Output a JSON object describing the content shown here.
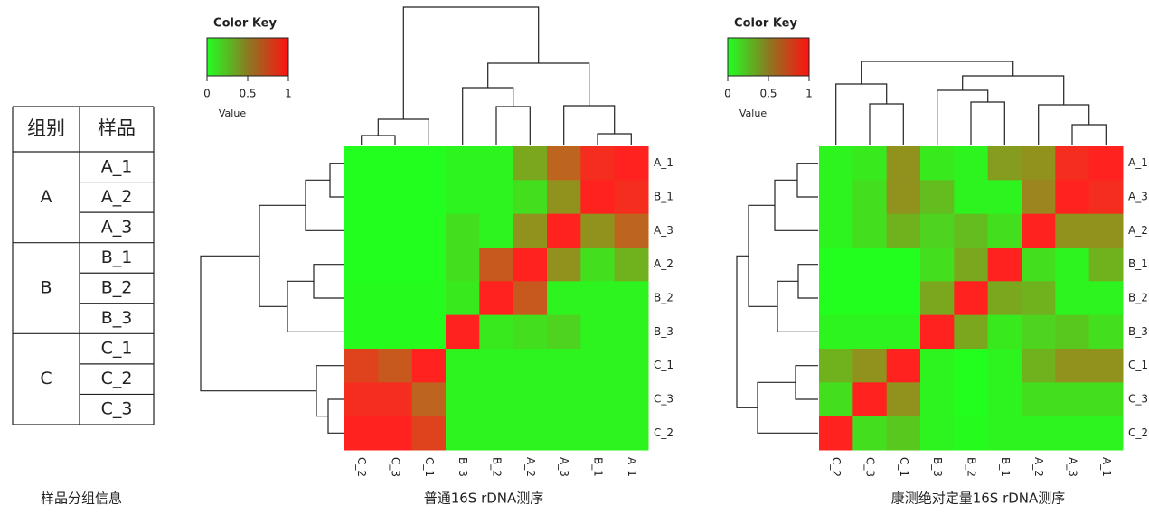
{
  "table": {
    "header": [
      "组别",
      "样品"
    ],
    "groups": [
      {
        "name": "A",
        "samples": [
          "A_1",
          "A_2",
          "A_3"
        ]
      },
      {
        "name": "B",
        "samples": [
          "B_1",
          "B_2",
          "B_3"
        ]
      },
      {
        "name": "C",
        "samples": [
          "C_1",
          "C_2",
          "C_3"
        ]
      }
    ],
    "caption": "样品分组信息"
  },
  "chart_data": [
    {
      "type": "heatmap",
      "title": "普通16S rDNA测序",
      "rows": [
        "A_1",
        "B_1",
        "A_3",
        "A_2",
        "B_2",
        "B_3",
        "C_1",
        "C_3",
        "C_2"
      ],
      "columns": [
        "C_2",
        "C_3",
        "C_1",
        "B_3",
        "B_2",
        "A_2",
        "A_3",
        "B_1",
        "A_1"
      ],
      "values": [
        [
          0,
          0,
          0,
          0.05,
          0.05,
          0.4,
          0.7,
          0.95,
          1
        ],
        [
          0,
          0,
          0,
          0.05,
          0.05,
          0.15,
          0.5,
          1,
          0.95
        ],
        [
          0,
          0,
          0,
          0.15,
          0.05,
          0.5,
          1,
          0.5,
          0.7
        ],
        [
          0,
          0,
          0,
          0.15,
          0.75,
          1,
          0.5,
          0.15,
          0.35
        ],
        [
          0.02,
          0.02,
          0.02,
          0.1,
          1,
          0.75,
          0.05,
          0.05,
          0.05
        ],
        [
          0.02,
          0.02,
          0.02,
          1,
          0.1,
          0.15,
          0.2,
          0.05,
          0.05
        ],
        [
          0.85,
          0.75,
          1,
          0.05,
          0.05,
          0.05,
          0.05,
          0.05,
          0.05
        ],
        [
          0.95,
          0.95,
          0.7,
          0.05,
          0.05,
          0.05,
          0.05,
          0.05,
          0.05
        ],
        [
          1,
          1,
          0.85,
          0.05,
          0.05,
          0.05,
          0.05,
          0.05,
          0.05
        ]
      ],
      "colorbar": {
        "title": "Color Key",
        "label": "Value",
        "lim": [
          0,
          1
        ],
        "ticks": [
          0,
          0.5,
          1
        ]
      }
    },
    {
      "type": "heatmap",
      "title": "康测绝对定量16S rDNA测序",
      "rows": [
        "A_1",
        "A_3",
        "A_2",
        "B_1",
        "B_2",
        "B_3",
        "C_1",
        "C_3",
        "C_2"
      ],
      "columns": [
        "C_2",
        "C_3",
        "C_1",
        "B_3",
        "B_2",
        "B_1",
        "A_2",
        "A_3",
        "A_1"
      ],
      "values": [
        [
          0.05,
          0.1,
          0.5,
          0.1,
          0.05,
          0.45,
          0.5,
          0.95,
          1
        ],
        [
          0.05,
          0.15,
          0.5,
          0.3,
          0.05,
          0.05,
          0.55,
          1,
          0.95
        ],
        [
          0.05,
          0.15,
          0.35,
          0.2,
          0.3,
          0.15,
          1,
          0.5,
          0.5
        ],
        [
          0,
          0,
          0,
          0.15,
          0.4,
          1,
          0.15,
          0.05,
          0.35
        ],
        [
          0,
          0,
          0,
          0.4,
          1,
          0.4,
          0.35,
          0.05,
          0.05
        ],
        [
          0.05,
          0.05,
          0.05,
          1,
          0.4,
          0.1,
          0.2,
          0.25,
          0.15
        ],
        [
          0.35,
          0.5,
          1,
          0.05,
          0,
          0.05,
          0.35,
          0.5,
          0.5
        ],
        [
          0.15,
          1,
          0.5,
          0.05,
          0,
          0.05,
          0.15,
          0.15,
          0.15
        ],
        [
          1,
          0.15,
          0.25,
          0.05,
          0.02,
          0.05,
          0.05,
          0.05,
          0.05
        ]
      ],
      "colorbar": {
        "title": "Color Key",
        "label": "Value",
        "lim": [
          0,
          1
        ],
        "ticks": [
          0,
          0.5,
          1
        ]
      }
    }
  ]
}
